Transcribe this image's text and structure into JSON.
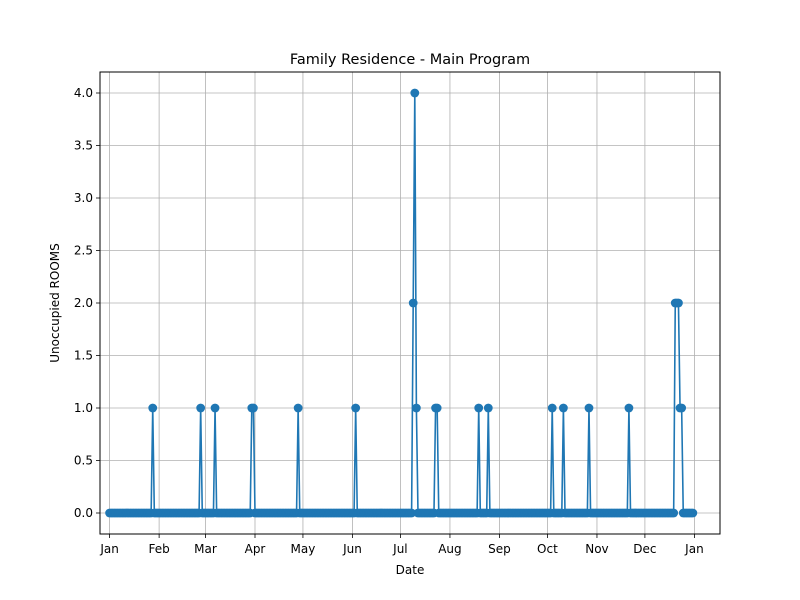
{
  "chart_data": {
    "type": "line",
    "title": "Family Residence - Main Program",
    "xlabel": "Date",
    "ylabel": "Unoccupied ROOMS",
    "xlim": [
      "2023-12-26",
      "2025-01-17"
    ],
    "ylim": [
      -0.2,
      4.2
    ],
    "grid": true,
    "colors": {
      "series": "#1f77b4",
      "grid": "#b0b0b0"
    },
    "x_ticks": [
      {
        "label": "Jan",
        "date": "2024-01-01"
      },
      {
        "label": "Feb",
        "date": "2024-02-01"
      },
      {
        "label": "Mar",
        "date": "2024-03-01"
      },
      {
        "label": "Apr",
        "date": "2024-04-01"
      },
      {
        "label": "May",
        "date": "2024-05-01"
      },
      {
        "label": "Jun",
        "date": "2024-06-01"
      },
      {
        "label": "Jul",
        "date": "2024-07-01"
      },
      {
        "label": "Aug",
        "date": "2024-08-01"
      },
      {
        "label": "Sep",
        "date": "2024-09-01"
      },
      {
        "label": "Oct",
        "date": "2024-10-01"
      },
      {
        "label": "Nov",
        "date": "2024-11-01"
      },
      {
        "label": "Dec",
        "date": "2024-12-01"
      },
      {
        "label": "Jan",
        "date": "2025-01-01"
      }
    ],
    "y_ticks": [
      {
        "label": "0.0",
        "value": 0
      },
      {
        "label": "0.5",
        "value": 0.5
      },
      {
        "label": "1.0",
        "value": 1
      },
      {
        "label": "1.5",
        "value": 1.5
      },
      {
        "label": "2.0",
        "value": 2
      },
      {
        "label": "2.5",
        "value": 2.5
      },
      {
        "label": "3.0",
        "value": 3
      },
      {
        "label": "3.5",
        "value": 3.5
      },
      {
        "label": "4.0",
        "value": 4
      }
    ],
    "x_range": [
      "2024-01-01",
      "2024-12-31"
    ],
    "baseline": 0,
    "nonzero_points": [
      {
        "date": "2024-01-28",
        "value": 1
      },
      {
        "date": "2024-02-27",
        "value": 1
      },
      {
        "date": "2024-03-07",
        "value": 1
      },
      {
        "date": "2024-03-30",
        "value": 1
      },
      {
        "date": "2024-03-31",
        "value": 1
      },
      {
        "date": "2024-04-28",
        "value": 1
      },
      {
        "date": "2024-06-03",
        "value": 1
      },
      {
        "date": "2024-07-09",
        "value": 2
      },
      {
        "date": "2024-07-10",
        "value": 4
      },
      {
        "date": "2024-07-11",
        "value": 1
      },
      {
        "date": "2024-07-23",
        "value": 1
      },
      {
        "date": "2024-07-24",
        "value": 1
      },
      {
        "date": "2024-08-19",
        "value": 1
      },
      {
        "date": "2024-08-25",
        "value": 1
      },
      {
        "date": "2024-10-04",
        "value": 1
      },
      {
        "date": "2024-10-11",
        "value": 1
      },
      {
        "date": "2024-10-27",
        "value": 1
      },
      {
        "date": "2024-11-21",
        "value": 1
      },
      {
        "date": "2024-12-20",
        "value": 2
      },
      {
        "date": "2024-12-21",
        "value": 2
      },
      {
        "date": "2024-12-22",
        "value": 2
      },
      {
        "date": "2024-12-23",
        "value": 1
      },
      {
        "date": "2024-12-24",
        "value": 1
      }
    ]
  }
}
